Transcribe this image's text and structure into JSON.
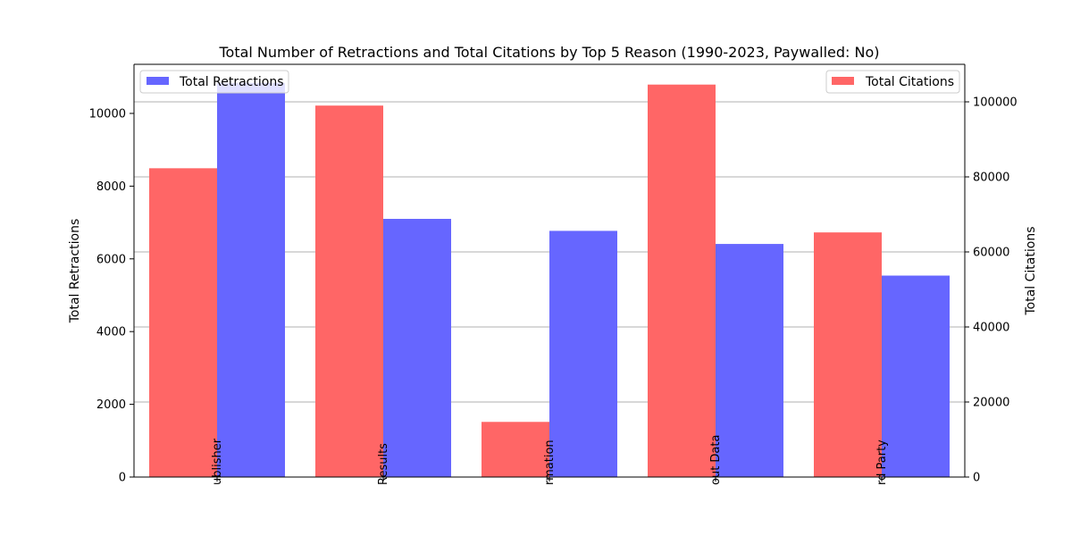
{
  "chart_data": {
    "type": "bar",
    "title": "Total Number of Retractions and Total Citations by Top 5 Reason (1990-2023, Paywalled: No)",
    "categories": [
      "ublisher",
      "Results",
      "rmation",
      "out Data",
      "rd Party"
    ],
    "series": [
      {
        "name": "Total Citations",
        "axis": "right",
        "color": "#ff6666",
        "values": [
          82300,
          99000,
          14700,
          104600,
          65200
        ]
      },
      {
        "name": "Total Retractions",
        "axis": "left",
        "color": "#6666ff",
        "values": [
          10840,
          7100,
          6770,
          6410,
          5540
        ]
      }
    ],
    "ylabel": "Total Retractions",
    "y2label": "Total Citations",
    "ylim": [
      0,
      11350
    ],
    "y2lim": [
      0,
      110000
    ],
    "yticks": [
      "0",
      "2000",
      "4000",
      "6000",
      "8000",
      "10000"
    ],
    "y2ticks": [
      "0",
      "20000",
      "40000",
      "60000",
      "80000",
      "100000"
    ],
    "grid": "horizontal lines at right-axis ticks",
    "legend_left": "top-left",
    "legend_right": "top-right"
  }
}
